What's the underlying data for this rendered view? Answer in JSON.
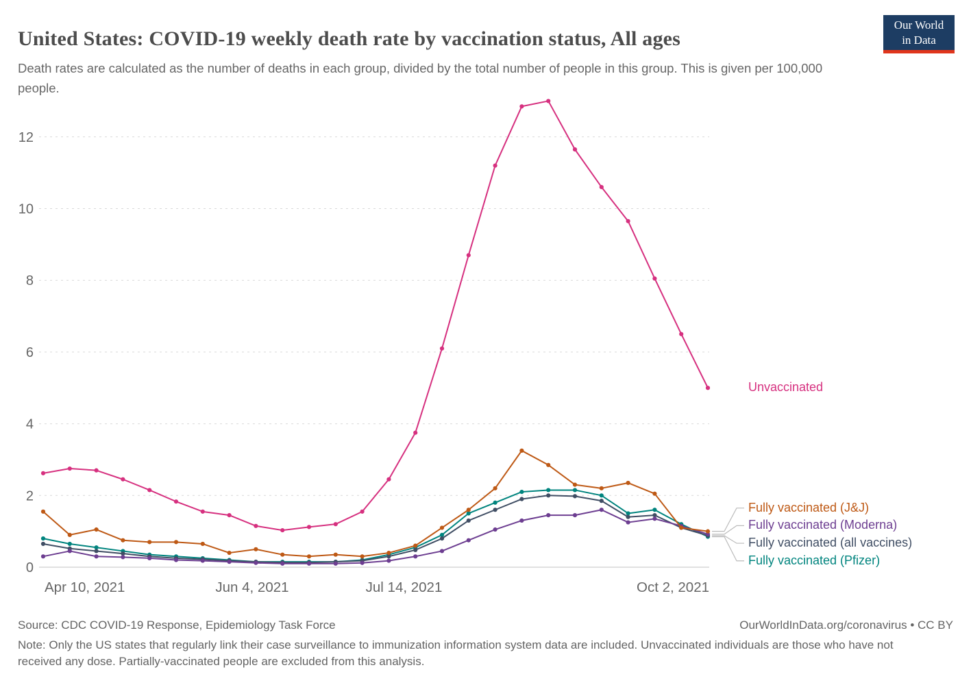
{
  "header": {
    "title": "United States: COVID-19 weekly death rate by vaccination status, All ages",
    "subtitle": "Death rates are calculated as the number of deaths in each group, divided by the total number of people in this group. This is given per 100,000 people.",
    "logo": {
      "line1": "Our World",
      "line2": "in Data",
      "bg_color": "#1d3d63",
      "accent_color": "#e0351c"
    }
  },
  "chart_data": {
    "type": "line",
    "title": "United States: COVID-19 weekly death rate by vaccination status, All ages",
    "xlabel": "",
    "ylabel": "",
    "grid": "horizontal-dashed",
    "legend_position": "right-end-labels",
    "ylim": [
      0,
      13.5
    ],
    "y_ticks": [
      0,
      2,
      4,
      6,
      8,
      10,
      12
    ],
    "x_tick_labels": [
      "Apr 10, 2021",
      "Jun 4, 2021",
      "Jul 14, 2021",
      "Oct 2, 2021"
    ],
    "x_tick_week_positions": [
      0,
      7.86,
      13.57,
      25
    ],
    "x": [
      "Apr 10, 2021",
      "Apr 17, 2021",
      "Apr 24, 2021",
      "May 1, 2021",
      "May 8, 2021",
      "May 15, 2021",
      "May 22, 2021",
      "May 29, 2021",
      "Jun 5, 2021",
      "Jun 12, 2021",
      "Jun 19, 2021",
      "Jun 26, 2021",
      "Jul 3, 2021",
      "Jul 10, 2021",
      "Jul 17, 2021",
      "Jul 24, 2021",
      "Jul 31, 2021",
      "Aug 7, 2021",
      "Aug 14, 2021",
      "Aug 21, 2021",
      "Aug 28, 2021",
      "Sep 4, 2021",
      "Sep 11, 2021",
      "Sep 18, 2021",
      "Sep 25, 2021",
      "Oct 2, 2021"
    ],
    "series": [
      {
        "name": "Unvaccinated",
        "color": "#d6307f",
        "values": [
          2.62,
          2.75,
          2.7,
          2.45,
          2.15,
          1.83,
          1.55,
          1.45,
          1.15,
          1.03,
          1.12,
          1.2,
          1.55,
          2.45,
          3.75,
          6.1,
          8.7,
          11.2,
          12.85,
          13.0,
          11.65,
          10.6,
          9.65,
          8.05,
          6.5,
          5.0
        ]
      },
      {
        "name": "Fully vaccinated (J&J)",
        "color": "#be5915",
        "values": [
          1.55,
          0.9,
          1.05,
          0.75,
          0.7,
          0.7,
          0.65,
          0.4,
          0.5,
          0.35,
          0.3,
          0.35,
          0.3,
          0.4,
          0.6,
          1.1,
          1.6,
          2.2,
          3.25,
          2.85,
          2.3,
          2.2,
          2.35,
          2.05,
          1.1,
          1.0
        ]
      },
      {
        "name": "Fully vaccinated (Moderna)",
        "color": "#6d3e91",
        "values": [
          0.3,
          0.45,
          0.3,
          0.28,
          0.25,
          0.2,
          0.18,
          0.15,
          0.12,
          0.1,
          0.1,
          0.1,
          0.12,
          0.18,
          0.3,
          0.45,
          0.75,
          1.05,
          1.3,
          1.45,
          1.45,
          1.6,
          1.25,
          1.35,
          1.15,
          0.92
        ]
      },
      {
        "name": "Fully vaccinated (all vaccines)",
        "color": "#404e64",
        "values": [
          0.65,
          0.52,
          0.45,
          0.38,
          0.3,
          0.25,
          0.22,
          0.18,
          0.15,
          0.13,
          0.13,
          0.15,
          0.18,
          0.3,
          0.48,
          0.8,
          1.3,
          1.6,
          1.9,
          2.0,
          1.98,
          1.85,
          1.4,
          1.45,
          1.1,
          0.88
        ]
      },
      {
        "name": "Fully vaccinated (Pfizer)",
        "color": "#00847e",
        "values": [
          0.8,
          0.65,
          0.55,
          0.45,
          0.35,
          0.3,
          0.25,
          0.2,
          0.15,
          0.15,
          0.15,
          0.15,
          0.2,
          0.35,
          0.55,
          0.9,
          1.5,
          1.8,
          2.1,
          2.15,
          2.15,
          2.0,
          1.5,
          1.6,
          1.2,
          0.85
        ]
      }
    ]
  },
  "footer": {
    "source": "Source: CDC COVID-19 Response, Epidemiology Task Force",
    "attribution": "OurWorldInData.org/coronavirus • CC BY",
    "note": "Note: Only the US states that regularly link their case surveillance to immunization information system data are included. Unvaccinated individuals are those who have not received any dose. Partially-vaccinated people are excluded from this analysis."
  }
}
